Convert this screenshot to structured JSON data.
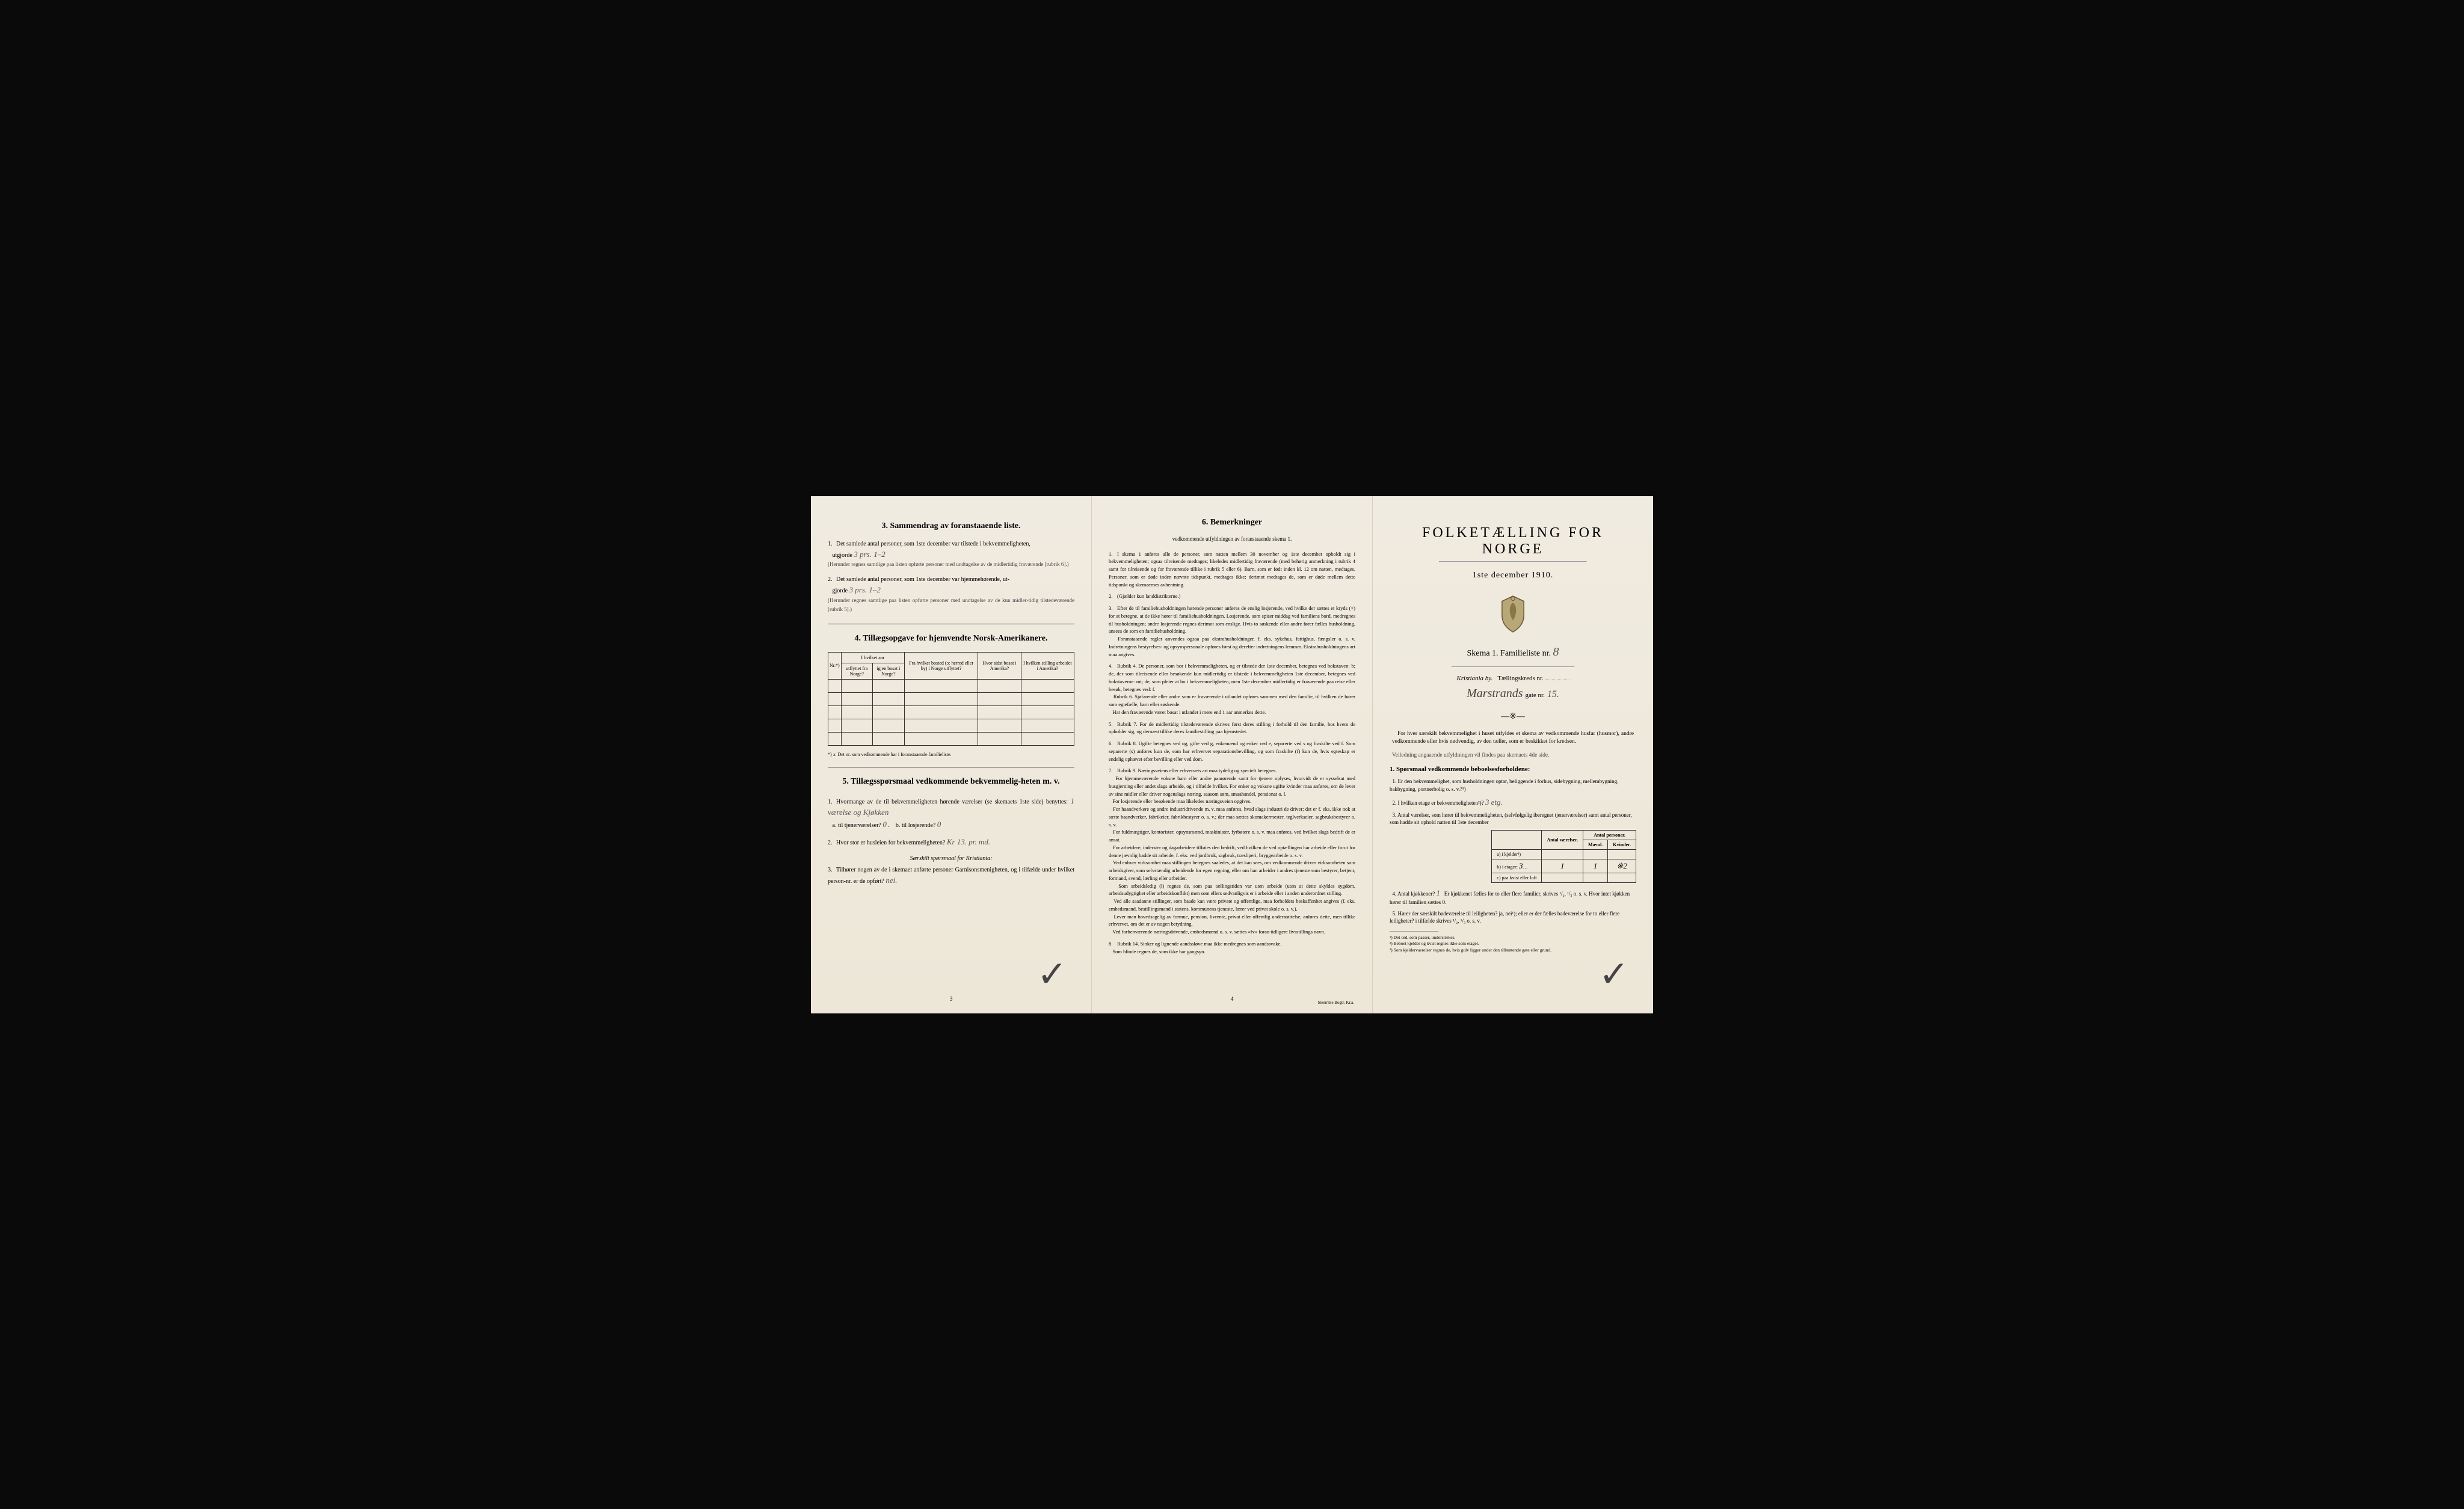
{
  "page1": {
    "section3": {
      "title": "3.  Sammendrag av foranstaaende liste.",
      "item1": "Det samlede antal personer, som 1ste december var tilstede i bekvemmeligheten,",
      "item1b": "utgjorde",
      "item1_hand": "3 prs.   1–2",
      "item1_note": "(Herunder regnes samtlige paa listen opførte personer med undtagelse av de midlertidig fraværende [rubrik 6].)",
      "item2": "Det samlede antal personer, som 1ste december var hjemmehørende, ut-",
      "item2b": "gjorde",
      "item2_hand": "3 prs.   1–2",
      "item2_note": "(Herunder regnes samtlige paa listen opførte personer med undtagelse av de kun midler-tidig tilstedeværende [rubrik 5].)"
    },
    "section4": {
      "title": "4.  Tillægsopgave for hjemvendte Norsk-Amerikanere.",
      "headers": [
        "Nr.*)",
        "I hvilket aar utflyttet fra Norge?",
        "I hvilket aar igjen bosat i Norge?",
        "Fra hvilket bosted (ɔ: herred eller by) i Norge utflyttet?",
        "Hvor sidst bosat i Amerika?",
        "I hvilken stilling arbeidet i Amerika?"
      ],
      "footnote": "*) ɔ: Det nr. som vedkommende har i foranstaaende familieliste."
    },
    "section5": {
      "title": "5.  Tillægsspørsmaal vedkommende bekvemmelig-heten m. v.",
      "item1": "Hvormange av de til bekvemmeligheten hørende værelser (se skemaets 1ste side) benyttes:",
      "item1_hand": "1 værelse og Kjøkken",
      "item1a": "a. til tjenerværelser?",
      "item1a_hand": "0",
      "item1b": "b. til losjerende?",
      "item1b_hand": "0",
      "item2": "Hvor stor er husleien for bekvemmeligheten?",
      "item2_hand": "Kr 13. pr. md.",
      "item3_heading": "Særskilt spørsmaal for Kristiania:",
      "item3": "Tilhører nogen av de i skemaet anførte personer Garnisonsmenigheten, og i tilfælde under hvilket person-nr. er de opført?",
      "item3_hand": "nei."
    },
    "page_num": "3"
  },
  "page2": {
    "title": "6.  Bemerkninger",
    "subtitle": "vedkommende utfyldningen av foranstaaende skema 1.",
    "items": [
      "I skema 1 anføres alle de personer, som natten mellem 30 november og 1ste december opholdt sig i bekvemmeligheten; ogsaa tilreisende medtages; likeledes midlertidig fraværende (med behørig anmerkning i rubrik 4 samt for tilreisende og for fraværende tillike i rubrik 5 eller 6). Barn, som er født inden kl. 12 om natten, medtages. Personer, som er døde inden nævnte tidspunkt, medtages ikke; derimot medtages de, som er døde mellem dette tidspunkt og skemaernes avhentning.",
      "(Gjælder kun landdistrikterne.)",
      "Efter de til familiehusholdningen hørende personer anføres de enslig losjerende, ved hvilke der sættes et kryds (×) for at betegne, at de ikke hører til familiehusholdningen. Losjerende, som spiser middag ved familiens bord, medregnes til husholdningen; andre losjerende regnes derimot som enslige. Hvis to søskende eller andre fører fælles husholdning, ansees de som en familiehusholdning.\n  Foranstaaende regler anvendes ogsaa paa ekstrahusholdninger, f. eks. sykehus, fattighus, fængsler o. s. v. Indretningens bestyrelses- og opsynspersonale opføres først og derefter indretningens lemmer. Ekstrahusholdningens art maa angives.",
      "Rubrik 4. De personer, som bor i bekvemmeligheten, og er tilstede der 1ste december, betegnes ved bokstaven: b; de, der som tilreisende eller besøkende kun midlertidig er tilstede i bekvemmeligheten 1ste december, betegnes ved bokstaverne: mt; de, som pleier at bo i bekvemmeligheten, men 1ste december midlertidig er fraværende paa reise eller besøk, betegnes ved: f.\n  Rubrik 6. Sjøfarende eller andre som er fraværende i utlandet opføres sammen med den familie, til hvilken de hører som egtefælle, barn eller søskende.\n  Har den fraværende været bosat i utlandet i mere end 1 aar anmerkes dette.",
      "Rubrik 7. For de midlertidig tilstedeværende skrives først deres stilling i forhold til den familie, hos hvem de opholder sig, og dernæst tillike deres familiestilling paa hjemstedet.",
      "Rubrik 8. Ugifte betegnes ved ug, gifte ved g, enkemænd og enker ved e, separerte ved s og fraskilte ved f. Som separerte (s) anføres kun de, som har erhvervet separationsbevilling, og som fraskilte (f) kun de, hvis egteskap er endelig ophævet efter bevilling eller ved dom.",
      "Rubrik 9. Næringsveiens eller erhvervets art maa tydelig og specielt betegnes.\n  For hjemmeværende voksne barn eller andre paarørende samt for tjenere oplyses, hvorvidt de er sysselsat med husgjerning eller andet slags arbeide, og i tilfælde hvilket. For enker og voksne ugifte kvinder maa anføres, om de lever av sine midler eller driver nogenslags næring, saasom søm, smaahandel, pensionat o. l.\n  For losjerende eller besøkende maa likeledes næringsveien opgives.\n  For haandverkere og andre industridrivende m. v. maa anføres, hvad slags industri de driver; det er f. eks. ikke nok at sætte haandverker, fabrikeier, fabrikbestyrer o. s. v.; der maa sættes skomakermester, teglverkseier, sagbruksbestyrer o. s. v.\n  For fuldmægtiger, kontorister, opsynsmænd, maskinister, fyrbøtere o. s. v. maa anføres, ved hvilket slags bedrift de er ansat.\n  For arbeidere, inderster og dagarbeidere tilføies den bedrift, ved hvilken de ved optællingen har arbeide eller forut for denne jævnlig hadde sit arbeide, f. eks. ved jordbruk, sagbruk, træsliperi, bryggearbeide o. s. v.\n  Ved enhver virksomhet maa stillingen betegnes saaledes, at det kan sees, om vedkommende driver virksomheten som arbeidsgiver, som selvstændig arbeidende for egen regning, eller om han arbeider i andres tjeneste som bestyrer, betjent, formand, svend, lærling eller arbeider.\n  Som arbeidsledig (l) regnes de, som paa tællingstiden var uten arbeide (uten at dette skyldes sygdom, arbeidsudygtighet eller arbeidskonflikt) men som ellers sedvanligvis er i arbeide eller i anden underordnet stilling.\n  Ved alle saadanne stillinger, som baade kan være private og offentlige, maa forholdets beskaffenhet angives (f. eks. embedsmand, bestillingsmand i statens, kommunens tjeneste, lærer ved privat skole o. s. v.).\n  Lever man hovedsagelig av formue, pension, livrente, privat eller offentlig understøttelse, anføres dette, men tillike erhvervet, om det er av nogen betydning.\n  Ved forhenværende næringsdrivende, embedsmænd o. s. v. sættes «fv» foran tidligere livsstillings navn.",
      "Rubrik 14. Sinker og lignende aandssløve maa ikke medregnes som aandssvake.\n  Som blinde regnes de, som ikke har gangsyn."
    ],
    "page_num": "4",
    "printer": "Steen'ske Bogtr. Kr.a."
  },
  "page3": {
    "main_title": "FOLKETÆLLING FOR NORGE",
    "date": "1ste december 1910.",
    "skema_label": "Skema 1.  Familieliste nr.",
    "skema_num": "8",
    "city_label": "Kristiania by.",
    "district_label": "Tællingskreds nr.",
    "street_hand": "Marstrands",
    "gate_label": "gate nr.",
    "gate_num": "15.",
    "intro": "For hver særskilt bekvemmelighet i huset utfyldes et skema av vedkommende husfar (husmor), andre vedkommende eller hvis nødvendig, av den tæller, som er beskikket for kredsen.",
    "intro_note": "Veiledning angaaende utfyldningen vil findes paa skemaets 4de side.",
    "q1_title": "1. Spørsmaal vedkommende beboelsesforholdene:",
    "q1_1": "Er den bekvemmelighet, som husholdningen optar, beliggende i forhus, sidebygning, mellembygning, bakbygning, portnerbolig o. s. v.?¹)",
    "q1_2": "I hvilken etage er bekvemmeligheten²)?",
    "q1_2_hand": "3 etg.",
    "q1_3": "Antal værelser, som hører til bekvemmeligheten, (selvfølgelig iberegnet tjenerværelser) samt antal personer, som hadde sit ophold natten til 1ste december",
    "table": {
      "headers": [
        "",
        "Antal værelser.",
        "Mænd.",
        "Kvinder."
      ],
      "col_span": "Antal personer.",
      "rows": [
        [
          "a) i kjelder³)",
          "",
          "",
          ""
        ],
        [
          "b) i etager:",
          "3",
          "1",
          "1  ※2"
        ],
        [
          "c) paa kvist eller loft",
          "",
          "",
          ""
        ]
      ],
      "row_a_hand": "",
      "row_b_etage": "3",
      "row_b_vaer": "1",
      "row_b_m": "1",
      "row_b_k": "※2"
    },
    "q1_4": "Antal kjøkkener?",
    "q1_4_hand": "1",
    "q1_4_rest": "Er kjøkkenet fælles for to eller flere familier, skrives ¹/₂, ¹/₃ o. s. v.  Hvor intet kjøkken hører til familien sættes 0.",
    "q1_5": "Hører der særskilt badeværelse til leiligheten? ja, nei¹); eller er der fælles badeværelse for to eller flere leiligheter? i tilfælde skrives ¹/₂, ¹/₃ o. s. v.",
    "footnotes": [
      "¹) Det ord, som passer, understrekes.",
      "²) Beboet kjelder og kvist regnes ikke som etager.",
      "³) Som kjeldervaerelser regnes de, hvis gulv ligger under den tillstøtende gate eller grund."
    ]
  },
  "colors": {
    "paper": "#f0ebe0",
    "ink": "#1a1a1a",
    "hand": "#555555",
    "border": "#333333"
  }
}
